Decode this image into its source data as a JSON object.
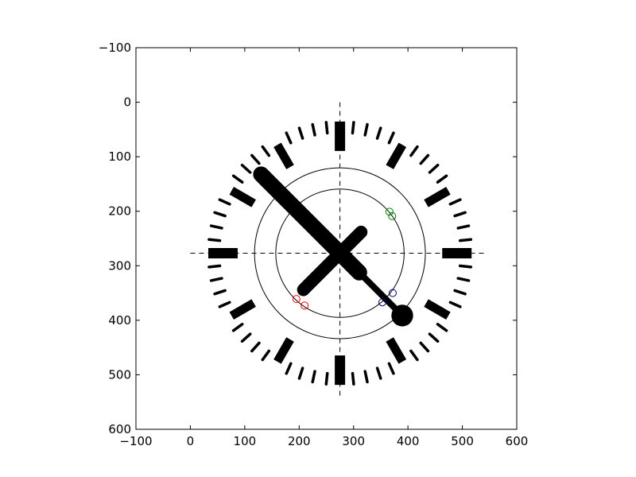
{
  "chart_data": {
    "type": "scatter",
    "title": "",
    "xlabel": "",
    "ylabel": "",
    "xlim": [
      -100,
      600
    ],
    "ylim": [
      600,
      -100
    ],
    "y_axis_inverted": true,
    "grid": false,
    "x_ticks": [
      -100,
      0,
      100,
      200,
      300,
      400,
      500,
      600
    ],
    "y_ticks": [
      -100,
      0,
      100,
      200,
      300,
      400,
      500,
      600
    ],
    "x_tick_labels": [
      "−100",
      "0",
      "100",
      "200",
      "300",
      "400",
      "500",
      "600"
    ],
    "y_tick_labels": [
      "−100",
      "0",
      "100",
      "200",
      "300",
      "400",
      "500",
      "600"
    ],
    "center": [
      275,
      277
    ],
    "crosshair": {
      "horizontal_x_range": [
        0,
        545
      ],
      "vertical_y_range": [
        0,
        545
      ],
      "style": "dashed",
      "color": "#000000"
    },
    "circles": [
      {
        "name": "inner-circle",
        "radius": 118,
        "color": "#000000"
      },
      {
        "name": "outer-circle",
        "radius": 157,
        "color": "#000000"
      }
    ],
    "dial_marks": {
      "major_count": 12,
      "major_inner_radius": 178,
      "major_outer_radius": 230,
      "minor_count": 60,
      "minor_inner_radius": 222,
      "minor_outer_radius": 242,
      "color": "#000000"
    },
    "hands": [
      {
        "name": "hour-hand",
        "angle_deg": 225,
        "tail": 55,
        "length": 95,
        "width": 16
      },
      {
        "name": "minute-hand",
        "angle_deg": 135,
        "tail": 50,
        "length": 205,
        "width": 20
      },
      {
        "name": "second-hand",
        "angle_deg": 315,
        "tail": 50,
        "length": 150,
        "width": 8,
        "blob_radius": 20
      }
    ],
    "series": [
      {
        "color": "#ff0000",
        "marker": "o",
        "points": [
          [
            195,
            361
          ],
          [
            210,
            373
          ]
        ]
      },
      {
        "color": "#008000",
        "marker": "o",
        "points": [
          [
            366,
            201
          ],
          [
            371,
            209
          ]
        ]
      },
      {
        "color": "#000080",
        "marker": "o",
        "points": [
          [
            353,
            367
          ],
          [
            372,
            350
          ]
        ]
      }
    ]
  }
}
